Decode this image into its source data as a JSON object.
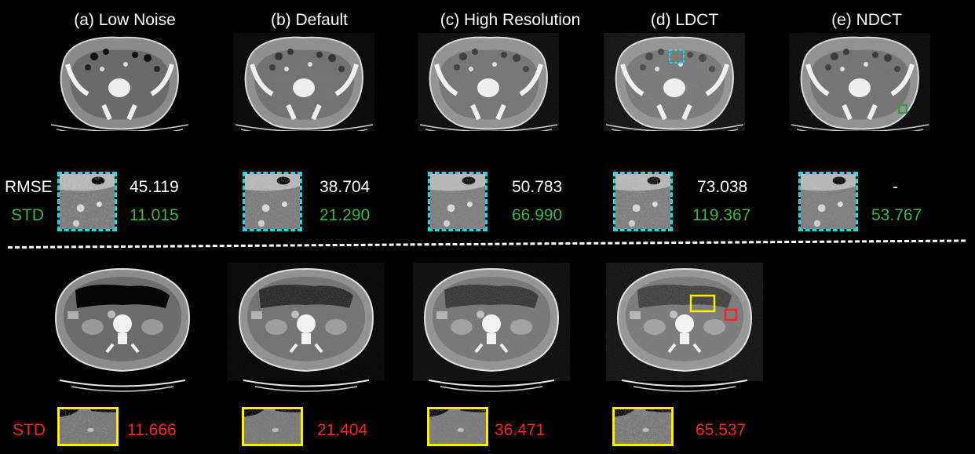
{
  "columns": [
    {
      "title": "(a) Low Noise",
      "rmse": "45.119",
      "std_top": "11.015",
      "std_bottom": "11.666"
    },
    {
      "title": "(b) Default",
      "rmse": "38.704",
      "std_top": "21.290",
      "std_bottom": "21.404"
    },
    {
      "title": "(c) High Resolution",
      "rmse": "50.783",
      "std_top": "66.990",
      "std_bottom": "36.471"
    },
    {
      "title": "(d) LDCT",
      "rmse": "73.038",
      "std_top": "119.367",
      "std_bottom": "65.537"
    },
    {
      "title": "(e) NDCT",
      "rmse": "-",
      "std_top": "53.767"
    }
  ],
  "row_labels": {
    "rmse": "RMSE",
    "std_top": "STD",
    "std_bottom": "STD"
  },
  "colors": {
    "background": "#000000",
    "rmse_text": "#ffffff",
    "std_top_text": "#3fb24b",
    "std_bottom_text": "#ff2020",
    "roi_cyan": "#1dd9e6",
    "roi_yellow": "#ffee00",
    "roi_green": "#2e9e3a",
    "roi_red": "#ff2020"
  }
}
